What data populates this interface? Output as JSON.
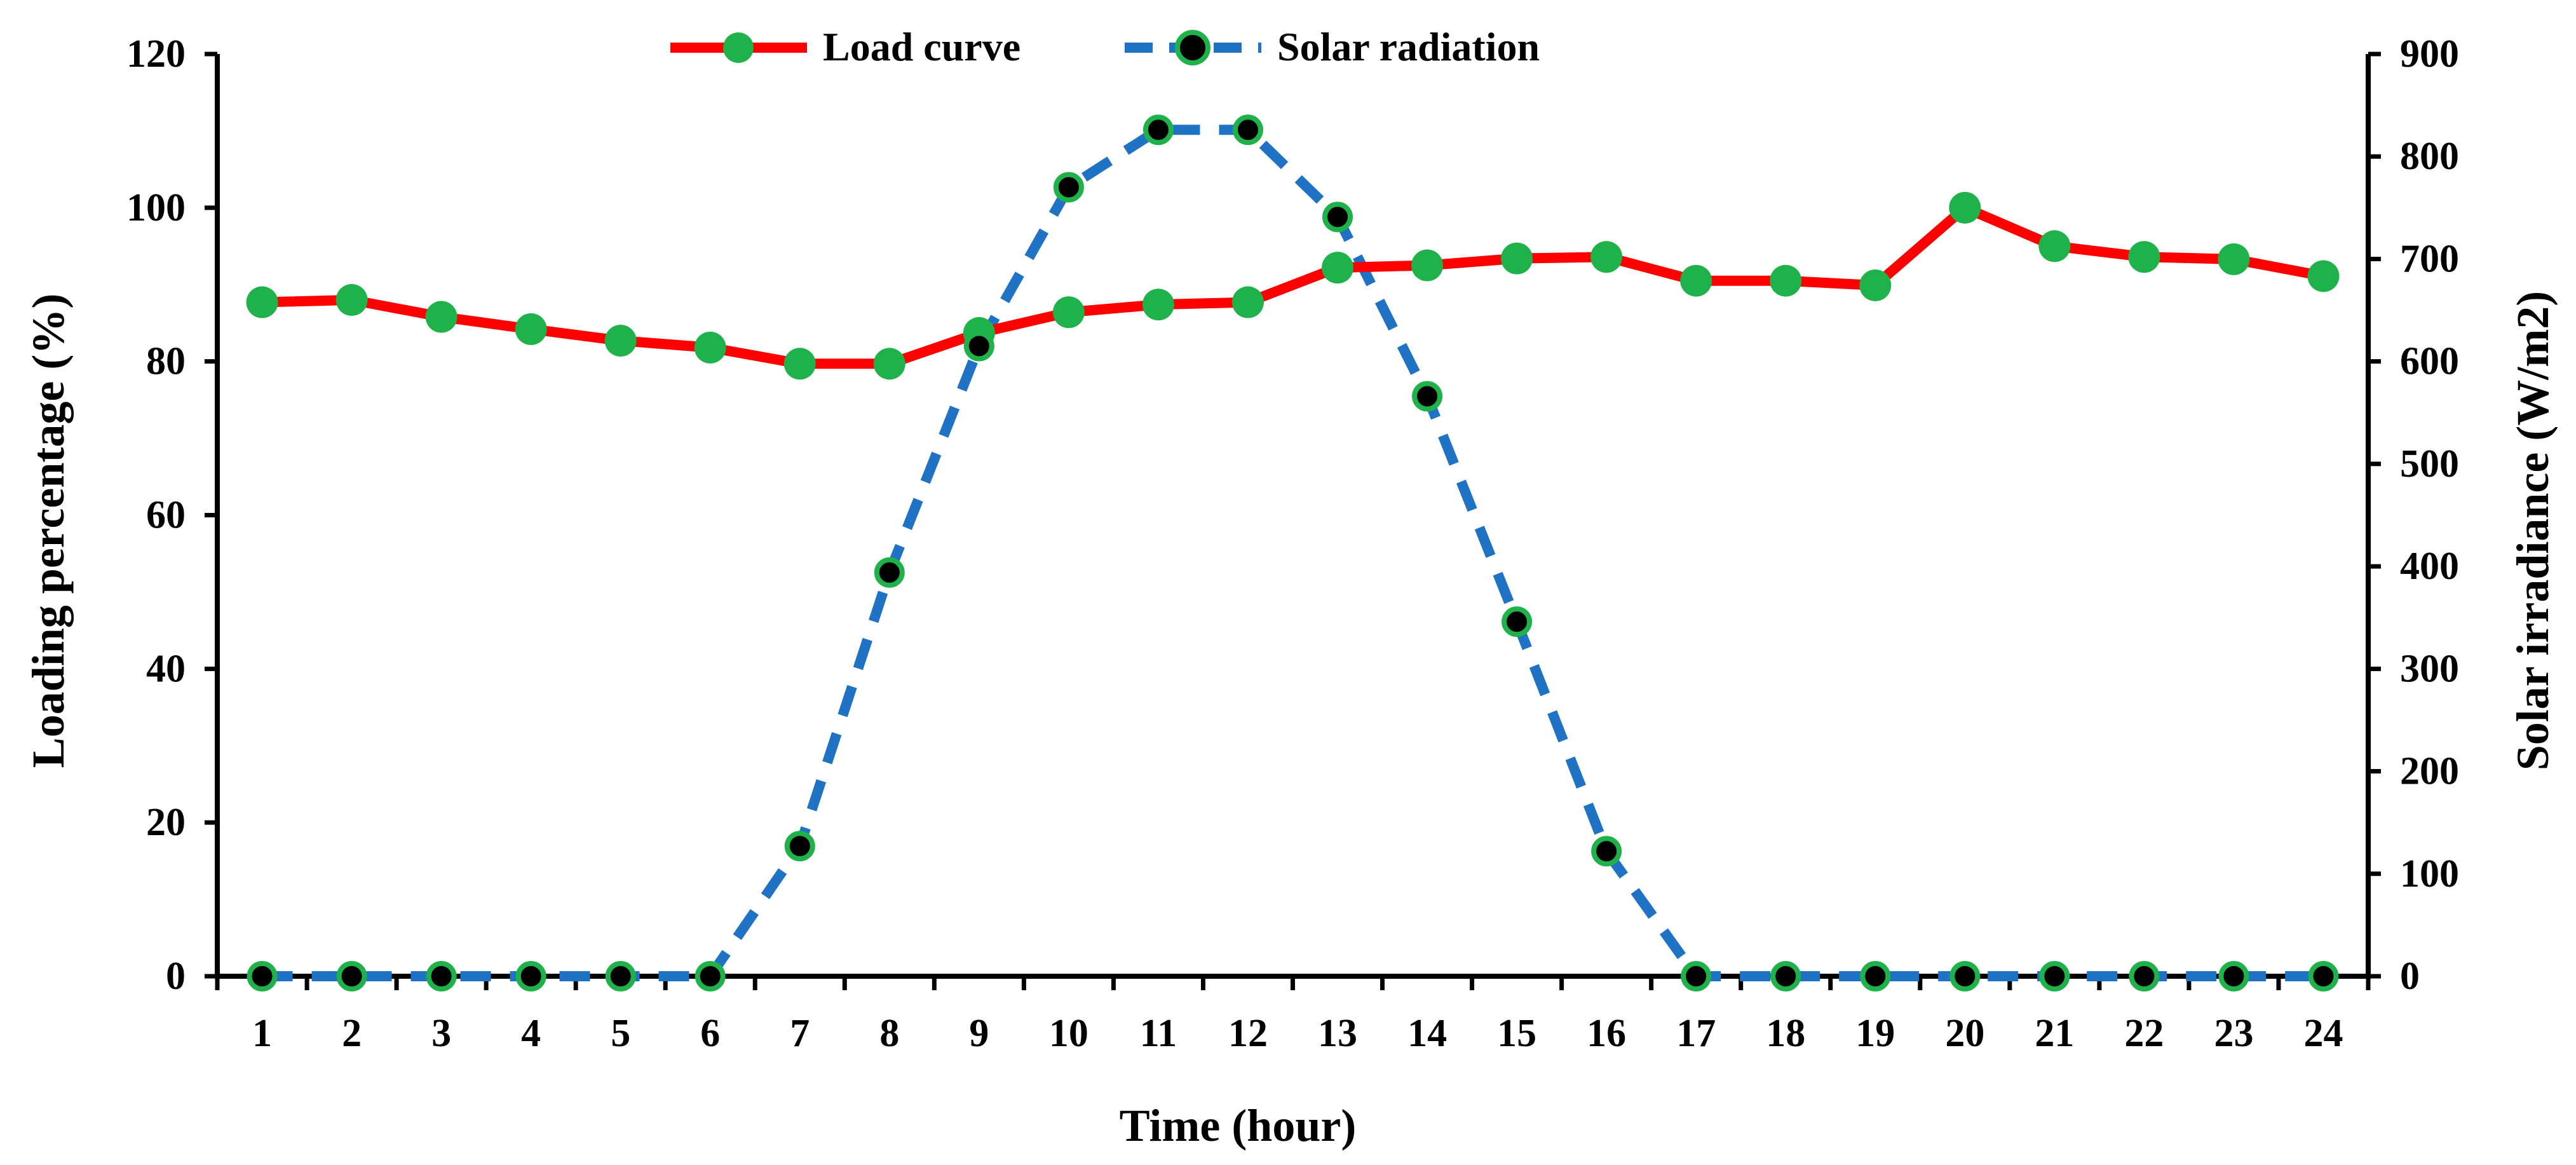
{
  "chart_data": {
    "type": "line",
    "x": [
      1,
      2,
      3,
      4,
      5,
      6,
      7,
      8,
      9,
      10,
      11,
      12,
      13,
      14,
      15,
      16,
      17,
      18,
      19,
      20,
      21,
      22,
      23,
      24
    ],
    "xlabel": "Time (hour)",
    "y_left_label": "Loading percentage (%)",
    "y_right_label": "Solar irradiance (W/m2)",
    "y_left_range": [
      0,
      120
    ],
    "y_left_ticks": [
      0,
      20,
      40,
      60,
      80,
      100,
      120
    ],
    "y_right_range": [
      0,
      900
    ],
    "y_right_ticks": [
      0,
      100,
      200,
      300,
      400,
      500,
      600,
      700,
      800,
      900
    ],
    "grid": false,
    "legend_position": "top-center",
    "series": [
      {
        "name": "Load curve",
        "axis": "left",
        "color": "#ff0000",
        "marker_color": "#1fb24a",
        "line_style": "solid",
        "values": [
          87.7,
          88.0,
          85.8,
          84.2,
          82.7,
          81.8,
          79.7,
          79.7,
          83.7,
          86.4,
          87.4,
          87.7,
          92.2,
          92.5,
          93.4,
          93.6,
          90.5,
          90.5,
          89.9,
          100,
          95.0,
          93.6,
          93.3,
          91.1
        ]
      },
      {
        "name": "Solar radiation",
        "axis": "right",
        "color": "#1f72c4",
        "marker_color": "#000000",
        "marker_edge": "#1fb24a",
        "line_style": "dashed",
        "values": [
          0,
          0,
          0,
          0,
          0,
          0,
          127,
          394,
          615,
          770,
          826,
          826,
          741,
          566,
          346,
          122,
          0,
          0,
          0,
          0,
          0,
          0,
          0,
          0
        ]
      }
    ]
  }
}
